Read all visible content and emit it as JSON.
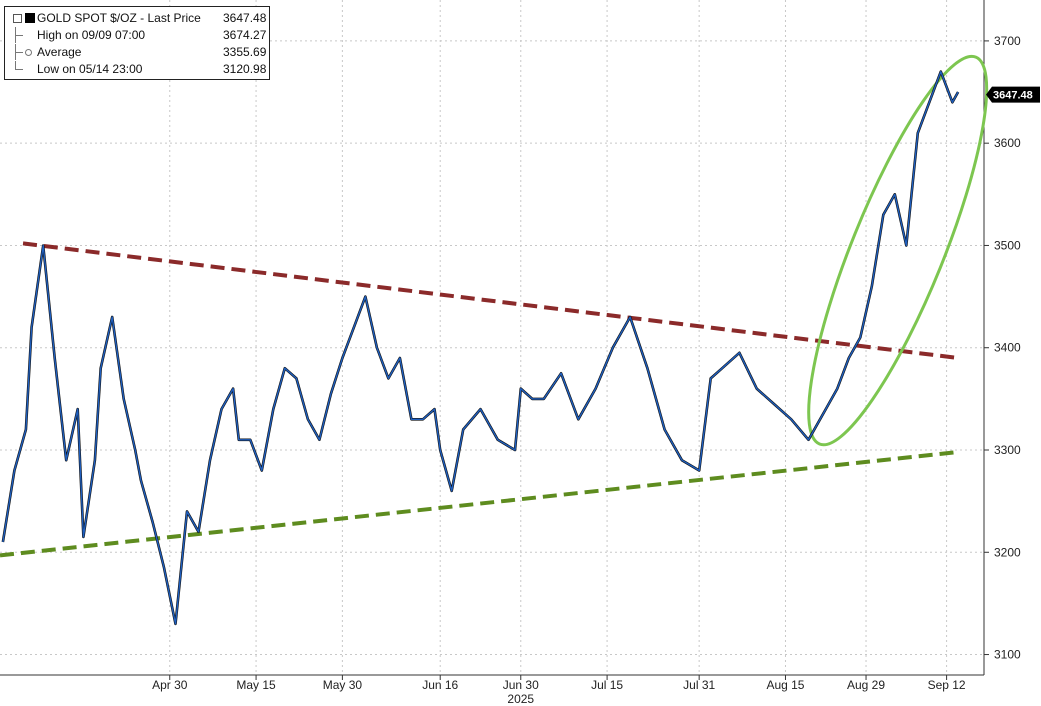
{
  "legend": {
    "title_label": "GOLD SPOT $/OZ - Last Price",
    "title_value": "3647.48",
    "items": [
      {
        "label": "High on 09/09 07:00",
        "value": "3674.27"
      },
      {
        "label": "Average",
        "value": "3355.69"
      },
      {
        "label": "Low on 05/14 23:00",
        "value": "3120.98"
      }
    ]
  },
  "last_price_tag": "3647.48",
  "chart_data": {
    "type": "line",
    "title": "",
    "xlabel": "2025",
    "ylabel": "",
    "ylim": [
      3080,
      3740
    ],
    "x_tick_labels": [
      "Apr 30",
      "May 15",
      "May 30",
      "Jun 16",
      "Jun 30",
      "Jul 15",
      "Jul 31",
      "Aug 15",
      "Aug 29",
      "Sep 12"
    ],
    "x_tick_days": [
      29,
      44,
      59,
      76,
      90,
      105,
      121,
      136,
      150,
      164
    ],
    "y_ticks": [
      3100,
      3200,
      3300,
      3400,
      3500,
      3600,
      3700
    ],
    "x_range_days": [
      -0.5,
      170.5
    ],
    "grid": true,
    "series": [
      {
        "name": "GOLD SPOT $/OZ",
        "color": "#1f5fbf",
        "x_days": [
          0,
          2,
          4,
          5,
          7,
          9,
          11,
          13,
          14,
          16,
          17,
          19,
          21,
          23,
          24,
          26,
          28,
          30,
          32,
          34,
          36,
          38,
          40,
          41,
          43,
          45,
          47,
          49,
          51,
          53,
          55,
          57,
          59,
          61,
          63,
          65,
          67,
          69,
          71,
          73,
          75,
          76,
          78,
          80,
          83,
          86,
          89,
          90,
          92,
          94,
          97,
          100,
          103,
          106,
          109,
          112,
          115,
          118,
          121,
          123,
          125,
          128,
          131,
          134,
          137,
          140,
          143,
          145,
          147,
          149,
          151,
          153,
          155,
          157,
          159,
          161,
          163,
          165,
          166
        ],
        "y": [
          3210,
          3280,
          3320,
          3420,
          3500,
          3390,
          3290,
          3340,
          3215,
          3290,
          3380,
          3430,
          3350,
          3300,
          3270,
          3230,
          3185,
          3130,
          3240,
          3220,
          3290,
          3340,
          3360,
          3310,
          3310,
          3280,
          3340,
          3380,
          3370,
          3330,
          3310,
          3355,
          3390,
          3420,
          3450,
          3400,
          3370,
          3390,
          3330,
          3330,
          3340,
          3300,
          3260,
          3320,
          3340,
          3310,
          3300,
          3360,
          3350,
          3350,
          3375,
          3330,
          3360,
          3400,
          3430,
          3380,
          3320,
          3290,
          3280,
          3370,
          3380,
          3395,
          3360,
          3345,
          3330,
          3310,
          3340,
          3360,
          3390,
          3410,
          3460,
          3530,
          3550,
          3500,
          3610,
          3640,
          3670,
          3640,
          3650
        ]
      }
    ],
    "trendlines": [
      {
        "name": "resistance",
        "color": "#8b2a2a",
        "x_days": [
          3.5,
          166
        ],
        "y": [
          3502,
          3390
        ]
      },
      {
        "name": "support",
        "color": "#5e8c1f",
        "x_days": [
          -0.5,
          166
        ],
        "y": [
          3197,
          3298
        ]
      }
    ],
    "highlight_ellipse": {
      "color": "#7dc650",
      "x_days": [
        141,
        170
      ],
      "y": [
        3295,
        3695
      ]
    }
  }
}
